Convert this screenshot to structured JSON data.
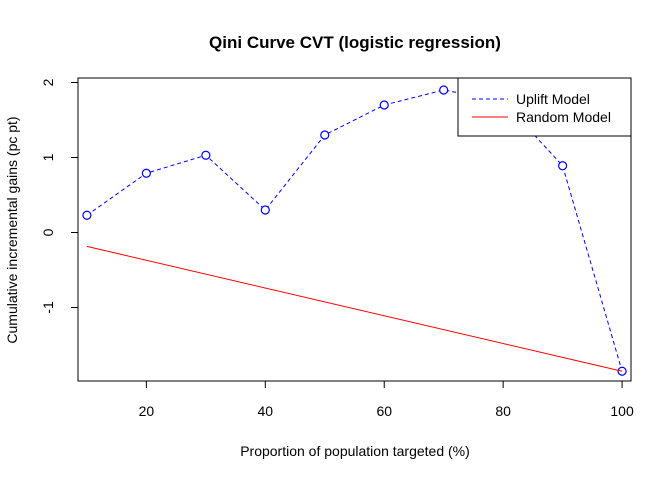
{
  "chart_data": {
    "type": "line",
    "title": "Qini Curve CVT (logistic regression)",
    "xlabel": "Proportion of population targeted (%)",
    "ylabel": "Cumulative incremental gains (pc pt)",
    "xlim": [
      8.5,
      101.5
    ],
    "ylim": [
      -1.98,
      2.06
    ],
    "xticks": [
      20,
      40,
      60,
      80,
      100
    ],
    "yticks": [
      -1,
      0,
      1,
      2
    ],
    "grid": false,
    "legend_position": "top-right",
    "series": [
      {
        "name": "Uplift Model",
        "color": "#0000ff",
        "line_style": "dashed",
        "marker": "open-circle",
        "x": [
          10,
          20,
          30,
          40,
          50,
          60,
          70,
          80,
          90,
          100
        ],
        "y": [
          0.23,
          0.79,
          1.03,
          0.3,
          1.3,
          1.7,
          1.9,
          1.75,
          0.89,
          -1.85
        ]
      },
      {
        "name": "Random Model",
        "color": "#ff0000",
        "line_style": "solid",
        "marker": "none",
        "x": [
          10,
          100
        ],
        "y": [
          -0.185,
          -1.85
        ]
      }
    ]
  }
}
